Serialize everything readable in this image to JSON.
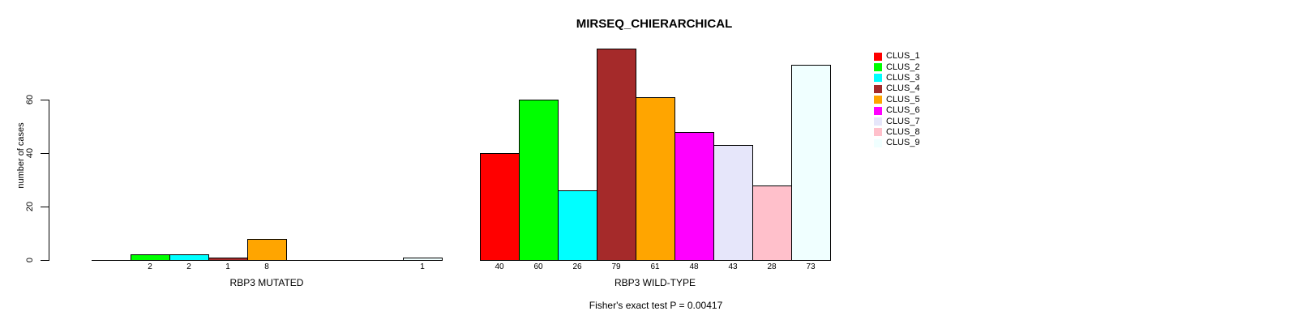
{
  "page": {
    "background": "#ffffff",
    "text_color": "#000000"
  },
  "chart_data": {
    "type": "bar",
    "title": "MIRSEQ_CHIERARCHICAL",
    "ylabel": "number of cases",
    "xlabel": "",
    "yticks": [
      0,
      20,
      40,
      60
    ],
    "ylim": [
      0,
      79
    ],
    "grid": false,
    "legend_position": "right",
    "bar_border_color": "#000000",
    "legend": [
      {
        "label": "CLUS_1",
        "color": "#ff0000"
      },
      {
        "label": "CLUS_2",
        "color": "#00ff00"
      },
      {
        "label": "CLUS_3",
        "color": "#00ffff"
      },
      {
        "label": "CLUS_4",
        "color": "#a52a2a"
      },
      {
        "label": "CLUS_5",
        "color": "#ffa500"
      },
      {
        "label": "CLUS_6",
        "color": "#ff00ff"
      },
      {
        "label": "CLUS_7",
        "color": "#e6e6fa"
      },
      {
        "label": "CLUS_8",
        "color": "#ffc0cb"
      },
      {
        "label": "CLUS_9",
        "color": "#f0ffff"
      }
    ],
    "groups": [
      {
        "xlabel": "RBP3 MUTATED",
        "categories": [
          "CLUS_1",
          "CLUS_2",
          "CLUS_3",
          "CLUS_4",
          "CLUS_5",
          "CLUS_6",
          "CLUS_7",
          "CLUS_8",
          "CLUS_9"
        ],
        "values": [
          0,
          2,
          2,
          1,
          8,
          0,
          0,
          0,
          1
        ],
        "bar_labels": [
          "",
          "2",
          "2",
          "1",
          "8",
          "",
          "",
          "",
          "1"
        ]
      },
      {
        "xlabel": "RBP3 WILD-TYPE",
        "categories": [
          "CLUS_1",
          "CLUS_2",
          "CLUS_3",
          "CLUS_4",
          "CLUS_5",
          "CLUS_6",
          "CLUS_7",
          "CLUS_8",
          "CLUS_9"
        ],
        "values": [
          40,
          60,
          26,
          79,
          61,
          48,
          43,
          28,
          73
        ],
        "bar_labels": [
          "40",
          "60",
          "26",
          "79",
          "61",
          "48",
          "43",
          "28",
          "73"
        ]
      }
    ],
    "footnote": "Fisher's exact test P = 0.00417"
  }
}
